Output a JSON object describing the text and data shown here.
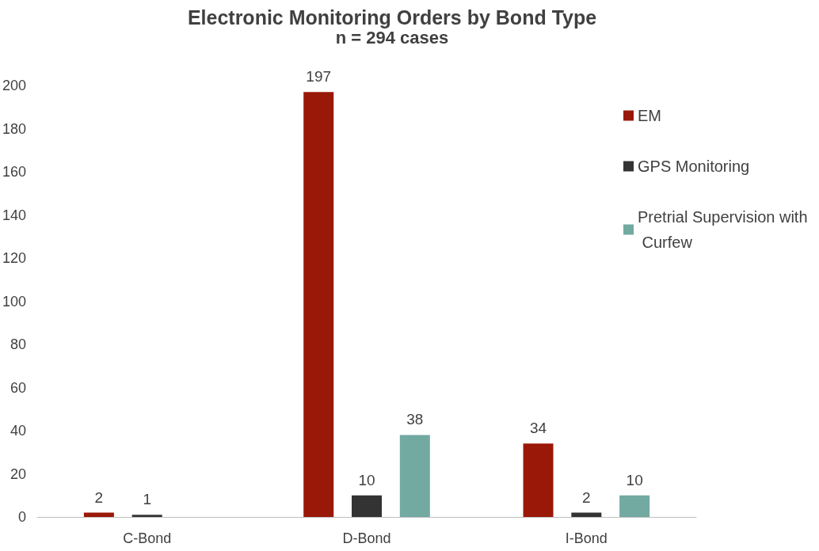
{
  "chart_data": {
    "type": "bar",
    "title": "Electronic Monitoring Orders by Bond Type",
    "subtitle": "n = 294 cases",
    "categories": [
      "C-Bond",
      "D-Bond",
      "I-Bond"
    ],
    "series": [
      {
        "name": "EM",
        "color": "#9a1807",
        "values": [
          2,
          197,
          34
        ]
      },
      {
        "name": "GPS Monitoring",
        "color": "#333333",
        "values": [
          1,
          10,
          2
        ]
      },
      {
        "name": "Pretrial Supervision with Curfew",
        "color": "#72a9a0",
        "values": [
          null,
          38,
          10
        ]
      }
    ],
    "ylim": [
      0,
      200
    ],
    "yticks": [
      0,
      20,
      40,
      60,
      80,
      100,
      120,
      140,
      160,
      180,
      200
    ],
    "grid": false,
    "legend": "right",
    "data_labels": true
  }
}
